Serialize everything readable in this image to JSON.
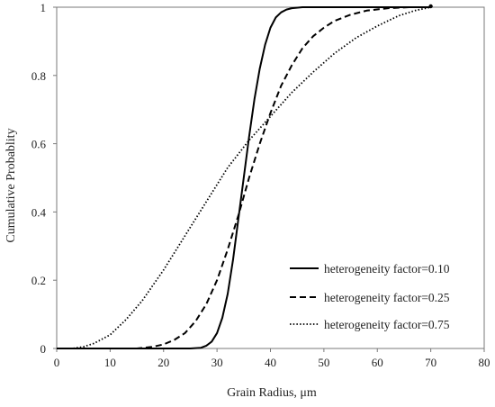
{
  "chart_data": {
    "type": "line",
    "title": "",
    "xlabel": "Grain Radius, μm",
    "ylabel": "Cumulative Probablity",
    "xlim": [
      0,
      80
    ],
    "ylim": [
      0,
      1
    ],
    "xticks": [
      0,
      10,
      20,
      30,
      40,
      50,
      60,
      70,
      80
    ],
    "yticks": [
      0,
      0.2,
      0.4,
      0.6,
      0.8,
      1
    ],
    "yticklabels": [
      "0",
      "0.2",
      "0.4",
      "0.6",
      "0.8",
      "1"
    ],
    "grid": false,
    "legend": "bottom-right",
    "series": [
      {
        "name": "heterogeneity factor=0.10",
        "style": "solid",
        "x": [
          0,
          25,
          27,
          28,
          29,
          30,
          31,
          32,
          33,
          34,
          35,
          36,
          37,
          38,
          39,
          40,
          41,
          42,
          43,
          44,
          46,
          50,
          60,
          70
        ],
        "y": [
          0,
          0,
          0.002,
          0.008,
          0.02,
          0.045,
          0.09,
          0.16,
          0.26,
          0.38,
          0.5,
          0.62,
          0.73,
          0.82,
          0.89,
          0.94,
          0.97,
          0.985,
          0.993,
          0.997,
          1,
          1,
          1,
          1
        ]
      },
      {
        "name": "heterogeneity factor=0.25",
        "style": "dashed",
        "x": [
          0,
          15,
          18,
          20,
          22,
          24,
          26,
          28,
          30,
          32,
          34,
          36,
          38,
          40,
          42,
          44,
          46,
          48,
          50,
          52,
          55,
          58,
          62,
          66,
          70
        ],
        "y": [
          0,
          0,
          0.005,
          0.012,
          0.025,
          0.045,
          0.08,
          0.13,
          0.2,
          0.29,
          0.39,
          0.5,
          0.6,
          0.69,
          0.77,
          0.83,
          0.88,
          0.915,
          0.94,
          0.96,
          0.978,
          0.99,
          0.997,
          1,
          1
        ]
      },
      {
        "name": "heterogeneity factor=0.75",
        "style": "dotted",
        "x": [
          0,
          3,
          5,
          7,
          10,
          13,
          16,
          20,
          24,
          28,
          32,
          36,
          40,
          44,
          48,
          52,
          56,
          60,
          64,
          67,
          70
        ],
        "y": [
          0,
          0,
          0.005,
          0.015,
          0.04,
          0.085,
          0.14,
          0.23,
          0.33,
          0.43,
          0.53,
          0.61,
          0.68,
          0.75,
          0.81,
          0.865,
          0.91,
          0.945,
          0.975,
          0.99,
          1
        ]
      }
    ]
  }
}
